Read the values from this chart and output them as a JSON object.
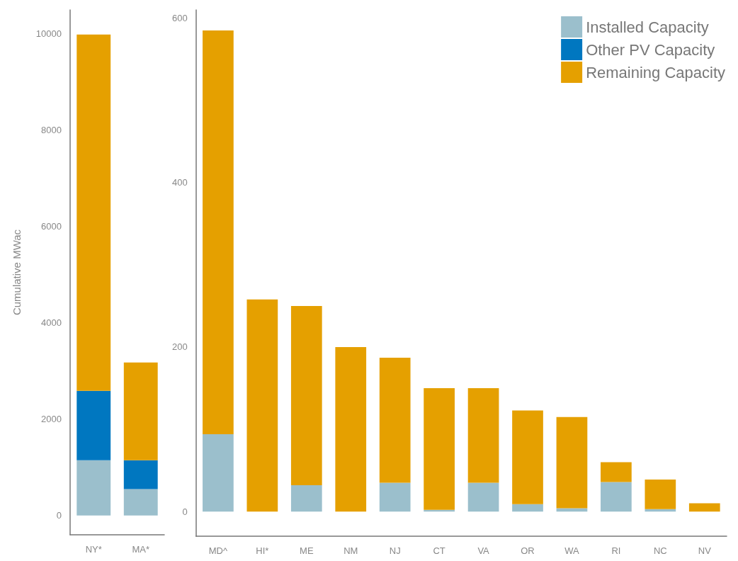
{
  "chart_data": [
    {
      "type": "bar",
      "stacked": true,
      "ylabel": "Cumulative MWac",
      "categories": [
        "NY*",
        "MA*"
      ],
      "ylim": [
        -400,
        10500
      ],
      "yticks": [
        0,
        2000,
        4000,
        6000,
        8000,
        10000
      ],
      "grid": false,
      "legend": false,
      "series": [
        {
          "color": "#9bbfcc",
          "values": [
            1150,
            550
          ]
        },
        {
          "color": "#0077c0",
          "values": [
            1440,
            600
          ]
        },
        {
          "color": "#e5a000",
          "values": [
            7400,
            2030
          ]
        }
      ]
    },
    {
      "type": "bar",
      "stacked": true,
      "categories": [
        "MD^",
        "HI*",
        "ME",
        "NM",
        "NJ",
        "CT",
        "VA",
        "OR",
        "WA",
        "RI",
        "NC",
        "NV"
      ],
      "ylim": [
        -30,
        610
      ],
      "yticks": [
        0,
        200,
        400,
        600
      ],
      "grid": false,
      "legend": "top right",
      "series": [
        {
          "name": "Installed Capacity",
          "color": "#9bbfcc",
          "values": [
            94,
            0,
            32,
            0,
            35,
            2,
            35,
            9,
            4,
            36,
            3,
            0
          ]
        },
        {
          "name": "Other PV Capacity",
          "color": "#0077c0",
          "values": [
            0,
            0,
            0,
            0,
            0,
            0,
            0,
            0,
            0,
            0,
            0,
            0
          ]
        },
        {
          "name": "Remaining Capacity",
          "color": "#e5a000",
          "values": [
            491,
            258,
            218,
            200,
            152,
            148,
            115,
            114,
            111,
            24,
            36,
            10
          ]
        }
      ]
    }
  ]
}
